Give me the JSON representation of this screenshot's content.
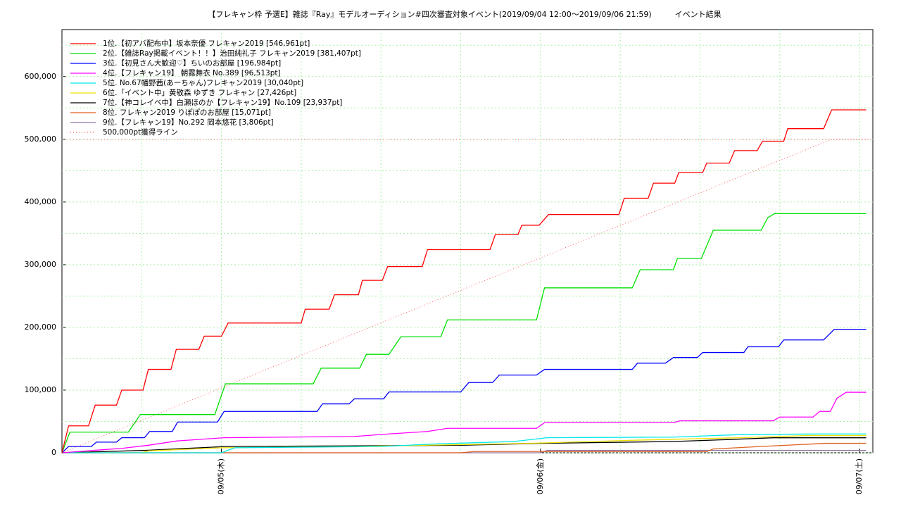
{
  "chart_data": {
    "type": "line",
    "title": "【フレキャン枠 予選E】雑誌『Ray』モデルオーディション#四次審査対象イベント(2019/09/04 12:00～2019/09/06 21:59)　　　イベント結果",
    "xlim": [
      12,
      73
    ],
    "ylim": [
      0,
      675000
    ],
    "xticks": [
      {
        "value": 24,
        "label": "09/05(木)"
      },
      {
        "value": 48,
        "label": "09/06(金)"
      },
      {
        "value": 72,
        "label": "09/07(土)"
      }
    ],
    "xminorticks": [
      18,
      30,
      36,
      42,
      54,
      60,
      66
    ],
    "yticks": [
      0,
      {
        "value": 100000,
        "label": "100,000"
      },
      {
        "value": 200000,
        "label": "200,000"
      },
      {
        "value": 300000,
        "label": "300,000"
      },
      {
        "value": 400000,
        "label": "400,000"
      },
      {
        "value": 500000,
        "label": "500,000"
      },
      {
        "value": 600000,
        "label": "600,000"
      }
    ],
    "yminorticks": [
      50000,
      150000,
      250000,
      350000,
      450000,
      550000,
      650000
    ],
    "grid": true,
    "reference_line": 500000,
    "series": [
      {
        "name": "1位.【初アバ配布中】坂本奈優 フレキャン2019 [546,961pt]",
        "color": "#ff0000",
        "style": "solid",
        "x": [
          12,
          12.5,
          14,
          14.5,
          16.1,
          16.5,
          18.1,
          18.5,
          20.2,
          20.6,
          22.3,
          22.7,
          24,
          24.5,
          30,
          30.3,
          32.1,
          32.5,
          34.3,
          34.6,
          36.1,
          36.5,
          39.1,
          39.5,
          44.2,
          44.6,
          46.3,
          46.6,
          47.9,
          48.6,
          53.9,
          54.3,
          56.1,
          56.5,
          58.1,
          58.4,
          60.2,
          60.5,
          62.2,
          62.6,
          64.3,
          64.7,
          66.3,
          66.6,
          69.3,
          69.9,
          72.5
        ],
        "values": [
          0,
          43000,
          43000,
          76000,
          76000,
          100000,
          100000,
          133000,
          133000,
          165000,
          165000,
          186000,
          186000,
          207000,
          207000,
          229000,
          229000,
          252000,
          252000,
          275000,
          275000,
          297000,
          297000,
          324000,
          324000,
          348000,
          348000,
          363000,
          363000,
          380000,
          380000,
          406000,
          406000,
          430000,
          430000,
          447000,
          447000,
          462000,
          462000,
          482000,
          482000,
          497000,
          497000,
          517000,
          517000,
          546961,
          546961
        ]
      },
      {
        "name": "2位.【雑誌Ray掲載イベント！！】治田純礼子 フレキャン2019 [381,407pt]",
        "color": "#00e000",
        "style": "solid",
        "x": [
          12,
          12.6,
          17,
          17.9,
          23.5,
          24.3,
          30.9,
          31.5,
          34.4,
          34.9,
          36.6,
          37.5,
          40.5,
          41,
          47.7,
          48.3,
          54.9,
          55.5,
          58,
          58.3,
          60.1,
          61,
          64.6,
          65.1,
          65.6,
          72.5
        ],
        "values": [
          0,
          33000,
          33000,
          61000,
          61000,
          110000,
          110000,
          135000,
          135000,
          157000,
          157000,
          185000,
          185000,
          212000,
          212000,
          263000,
          263000,
          292000,
          292000,
          310000,
          310000,
          355000,
          355000,
          375000,
          381407,
          381407
        ]
      },
      {
        "name": "3位.【初見さん大歓迎♡】ちいのお部屋 [196,984pt]",
        "color": "#0000ff",
        "style": "solid",
        "x": [
          12,
          12.5,
          14.2,
          14.6,
          16.1,
          16.5,
          18.2,
          18.6,
          20.3,
          20.7,
          23.7,
          24.2,
          31.2,
          31.6,
          33.6,
          34,
          36.2,
          36.6,
          42,
          42.6,
          44.4,
          44.9,
          47.7,
          48.3,
          54.9,
          55.3,
          57.4,
          58,
          59.8,
          60.2,
          63.3,
          63.6,
          65.9,
          66.3,
          69.3,
          70.1,
          72.5
        ],
        "values": [
          0,
          10000,
          10000,
          17000,
          17000,
          24000,
          24000,
          34000,
          34000,
          49000,
          49000,
          66000,
          66000,
          78000,
          78000,
          86000,
          86000,
          97000,
          97000,
          112000,
          112000,
          124000,
          124000,
          133000,
          133000,
          143000,
          143000,
          152000,
          152000,
          160000,
          160000,
          169000,
          169000,
          180000,
          180000,
          196984,
          196984
        ]
      },
      {
        "name": "4位.【フレキャン19】 朝霧舞衣 No.389 [96,513pt]",
        "color": "#ff00ff",
        "style": "solid",
        "x": [
          12,
          14.5,
          16.5,
          18.5,
          20.7,
          24.2,
          34,
          36.6,
          39.5,
          41,
          47.7,
          48.3,
          58,
          58.5,
          65.5,
          66,
          68.5,
          69,
          69.8,
          70.3,
          71,
          72.5
        ],
        "values": [
          0,
          4000,
          7000,
          12000,
          19000,
          24000,
          26000,
          30000,
          34000,
          39000,
          39000,
          48000,
          48000,
          51000,
          51000,
          57000,
          57000,
          66000,
          66000,
          87000,
          96513,
          96513
        ]
      },
      {
        "name": "5位. No.67幡野茜(あーちゃん)フレキャン2019 [30,040pt]",
        "color": "#00e8e8",
        "style": "solid",
        "x": [
          12,
          24,
          25,
          36,
          40,
          46,
          48.5,
          58,
          63,
          69,
          72.5
        ],
        "values": [
          0,
          0,
          8000,
          10000,
          14000,
          18000,
          24000,
          25000,
          29000,
          30040,
          30040
        ]
      },
      {
        "name": "6位.「イベント中」黄敬森 ゆずき フレキャン [27,426pt]",
        "color": "#f0e000",
        "style": "solid",
        "x": [
          12,
          18,
          18.5,
          24,
          34,
          42,
          47,
          55,
          63,
          68,
          72.5
        ],
        "values": [
          0,
          0,
          3000,
          8000,
          10000,
          13000,
          15000,
          20000,
          24000,
          27426,
          27426
        ]
      },
      {
        "name": "7位.【神コレイベ中】白瀬ほのか【フレキャン19】No.109 [23,937pt]",
        "color": "#000000",
        "style": "solid",
        "x": [
          12,
          18.5,
          24.3,
          42,
          48,
          58,
          62,
          65.5,
          72.5
        ],
        "values": [
          0,
          4000,
          10000,
          12000,
          15000,
          18000,
          21000,
          23937,
          23937
        ]
      },
      {
        "name": "8位. フレキャン2019 りぽぽのお部屋 [15,071pt]",
        "color": "#e06020",
        "style": "solid",
        "x": [
          12,
          42,
          43,
          60.5,
          61,
          64.5,
          69.5,
          72.5
        ],
        "values": [
          0,
          0,
          2000,
          2000,
          6000,
          10000,
          15071,
          15071
        ]
      },
      {
        "name": "9位.【フレキャン19】No.292 岡本悠花 [3,806pt]",
        "color": "#9070a0",
        "style": "solid",
        "x": [
          12,
          48,
          48.5,
          72.5
        ],
        "values": [
          0,
          0,
          3806,
          3806
        ]
      },
      {
        "name": "500,000pt獲得ライン",
        "color": "#ff6060",
        "style": "dotted",
        "x": [
          12,
          69.9,
          72.5
        ],
        "values": [
          0,
          500000,
          500000
        ]
      }
    ]
  }
}
